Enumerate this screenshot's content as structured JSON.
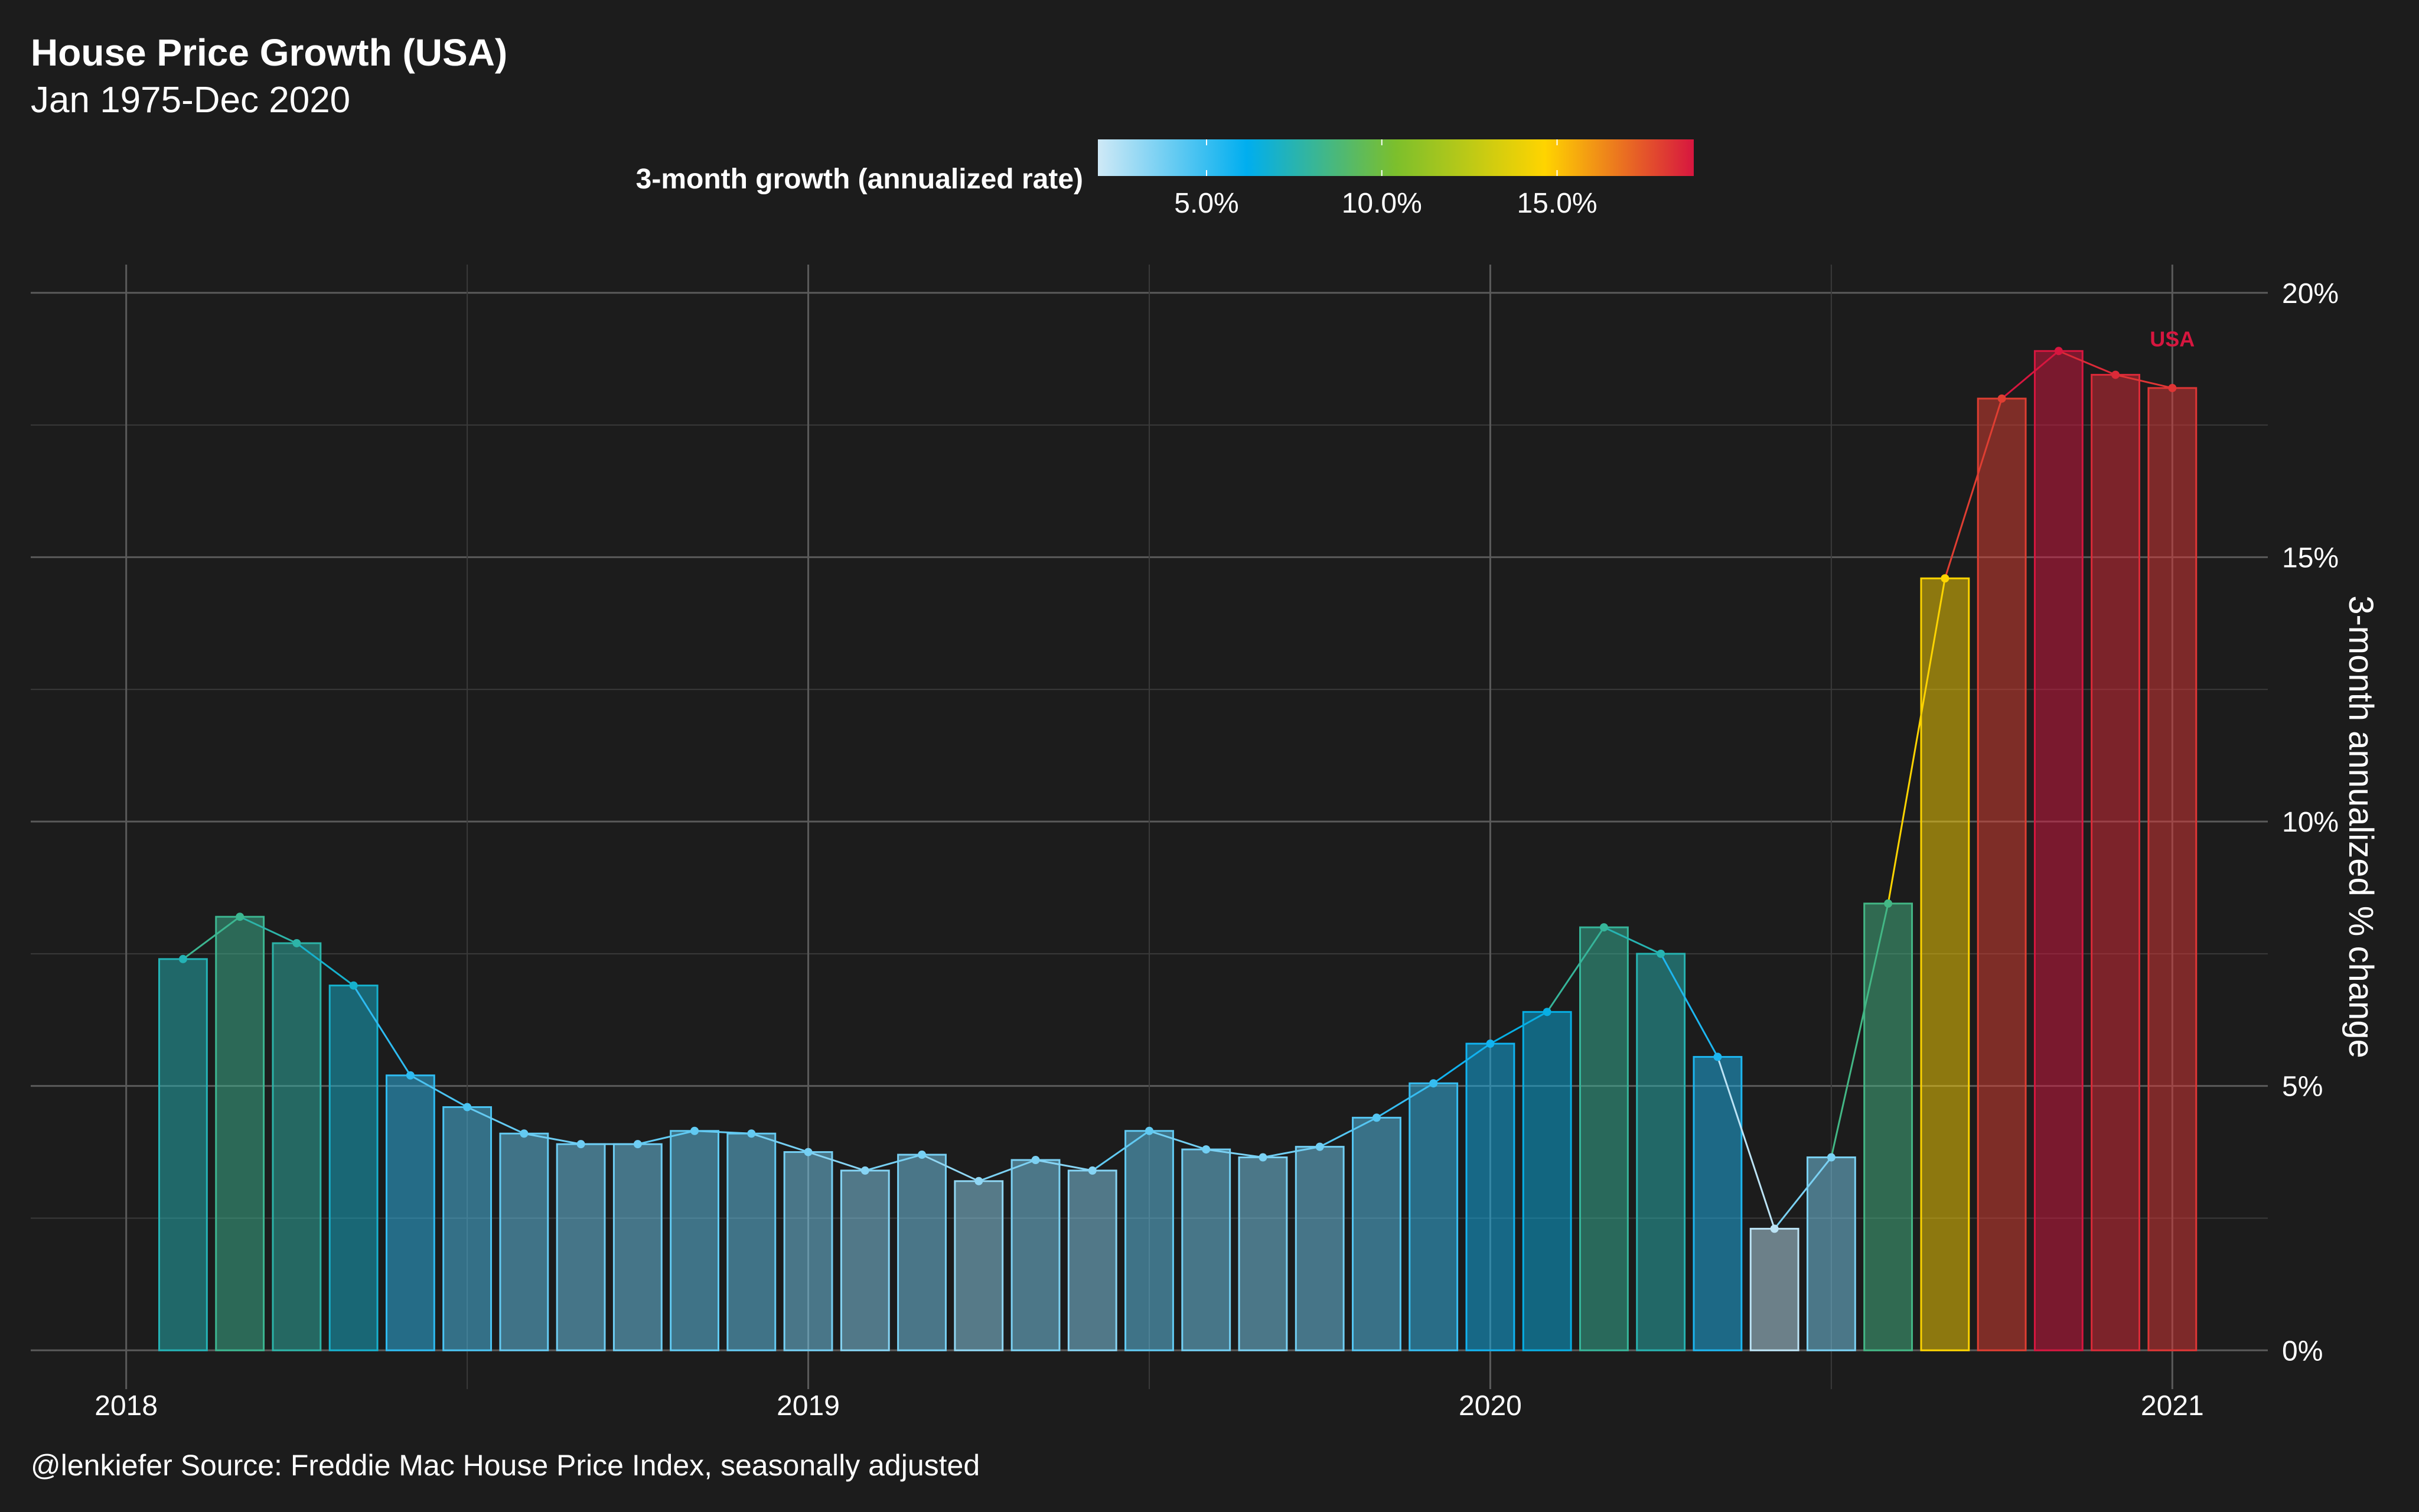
{
  "title": "House Price Growth (USA)",
  "subtitle": "Jan 1975-Dec 2020",
  "caption": "@lenkiefer Source: Freddie Mac House Price Index, seasonally adjusted",
  "legend": {
    "title": "3-month growth (annualized rate)",
    "ticks": [
      {
        "value": 5.0,
        "label": "5.0%"
      },
      {
        "value": 10.0,
        "label": "10.0%"
      },
      {
        "value": 15.0,
        "label": "15.0%"
      }
    ],
    "range": [
      1.9,
      18.9
    ]
  },
  "colors": {
    "background": "#1c1c1c",
    "gradient": [
      "#cfe9f6",
      "#00aeef",
      "#7cbf2c",
      "#ffd400",
      "#d7163f"
    ]
  },
  "chart_data": {
    "type": "bar",
    "series_label": "USA",
    "y_label": "3-month annualized % change",
    "y_ticks": [
      {
        "value": 0,
        "label": "0%"
      },
      {
        "value": 5,
        "label": "5%"
      },
      {
        "value": 10,
        "label": "10%"
      },
      {
        "value": 15,
        "label": "15%"
      },
      {
        "value": 20,
        "label": "20%"
      }
    ],
    "ylim": [
      -0.6,
      20.4
    ],
    "x_ticks": [
      {
        "value": 2018,
        "label": "2018"
      },
      {
        "value": 2019,
        "label": "2019"
      },
      {
        "value": 2020,
        "label": "2020"
      },
      {
        "value": 2021,
        "label": "2021"
      }
    ],
    "xlim": [
      2017.86,
      2021.14
    ],
    "x": [
      "2018-01",
      "2018-02",
      "2018-03",
      "2018-04",
      "2018-05",
      "2018-06",
      "2018-07",
      "2018-08",
      "2018-09",
      "2018-10",
      "2018-11",
      "2018-12",
      "2019-01",
      "2019-02",
      "2019-03",
      "2019-04",
      "2019-05",
      "2019-06",
      "2019-07",
      "2019-08",
      "2019-09",
      "2019-10",
      "2019-11",
      "2019-12",
      "2020-01",
      "2020-02",
      "2020-03",
      "2020-04",
      "2020-05",
      "2020-06",
      "2020-07",
      "2020-08",
      "2020-09",
      "2020-10",
      "2020-11",
      "2020-12"
    ],
    "values": [
      7.4,
      8.2,
      7.7,
      6.9,
      5.2,
      4.6,
      4.1,
      3.9,
      3.9,
      4.15,
      4.1,
      3.75,
      3.4,
      3.7,
      3.2,
      3.6,
      3.4,
      4.15,
      3.8,
      3.65,
      3.85,
      4.4,
      5.05,
      5.8,
      6.4,
      8.0,
      7.5,
      5.55,
      2.3,
      3.65,
      8.45,
      14.6,
      18.0,
      18.9,
      18.45,
      18.2
    ],
    "grid": true,
    "legend_position": "top"
  }
}
